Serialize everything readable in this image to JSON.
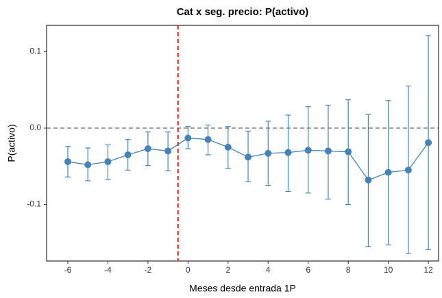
{
  "chart_data": {
    "type": "errorbar",
    "title": "Cat x seg. precio: P(activo)",
    "x_label": "Meses desde entrada 1P",
    "y_label": "P(activo)",
    "x": [
      -6,
      -5,
      -4,
      -3,
      -2,
      -1,
      0,
      1,
      2,
      3,
      4,
      5,
      6,
      7,
      8,
      9,
      10,
      11,
      12
    ],
    "values": [
      -0.044,
      -0.048,
      -0.044,
      -0.035,
      -0.027,
      -0.03,
      -0.013,
      -0.015,
      -0.025,
      -0.038,
      -0.033,
      -0.032,
      -0.029,
      -0.03,
      -0.031,
      -0.068,
      -0.058,
      -0.055,
      -0.019
    ],
    "ci_low": [
      -0.064,
      -0.069,
      -0.067,
      -0.055,
      -0.049,
      -0.056,
      -0.027,
      -0.035,
      -0.053,
      -0.07,
      -0.075,
      -0.083,
      -0.085,
      -0.093,
      -0.1,
      -0.155,
      -0.153,
      -0.164,
      -0.159
    ],
    "ci_high": [
      -0.024,
      -0.026,
      -0.022,
      -0.015,
      -0.005,
      -0.005,
      0.002,
      0.004,
      0.002,
      -0.004,
      0.009,
      0.017,
      0.028,
      0.03,
      0.037,
      0.018,
      0.036,
      0.055,
      0.121
    ],
    "color": "#4682b4",
    "xlim": [
      -7.06,
      12.51
    ],
    "ylim": [
      -0.174,
      0.1345
    ],
    "xticks": [
      -6,
      -4,
      -2,
      0,
      2,
      4,
      6,
      8,
      10,
      12
    ],
    "yticks": [
      -0.1,
      {
        "value": 0,
        "label": "0.0"
      },
      0.1
    ],
    "vline": -0.5,
    "vline_color": "#e41a1c",
    "hline": 0,
    "hline_color": "#666666"
  }
}
